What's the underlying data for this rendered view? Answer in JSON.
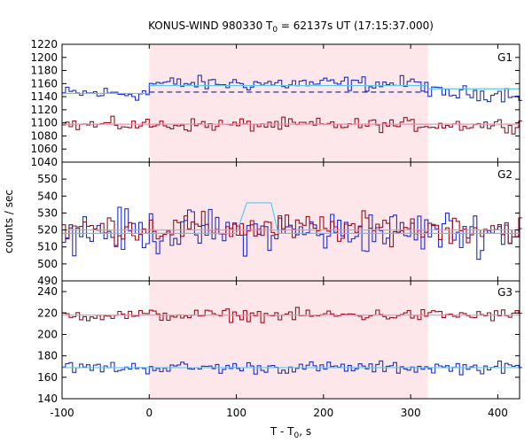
{
  "chart_data": {
    "type": "line",
    "title": {
      "main": "KONUS-WIND 980330 T",
      "sub": "0",
      "rest": " = 62137s UT (17:15:37.000)"
    },
    "xlabel": {
      "main": "T - T",
      "sub": "0",
      "rest": ", s"
    },
    "ylabel": "counts / sec",
    "xlim": [
      -100,
      425
    ],
    "xticks": [
      -100,
      0,
      100,
      200,
      300,
      400
    ],
    "highlight_interval": [
      0,
      320
    ],
    "colors": {
      "blue": "#1f2dcc",
      "red": "#9b0e1e",
      "cyan": "#5bc8ee",
      "pink": "#f08fa6",
      "navy": "#1c1e9a",
      "shade": "#fde7ea"
    },
    "panels": [
      {
        "label": "G1",
        "ylim": [
          1040,
          1220
        ],
        "yticks": [
          1040,
          1060,
          1080,
          1100,
          1120,
          1140,
          1160,
          1180,
          1200,
          1220
        ],
        "blue_base": 1145,
        "blue_burst": 1160,
        "blue_noise": 8,
        "red_base": 1097,
        "red_noise": 7,
        "fits": [
          {
            "color": "cyan",
            "dashed": false,
            "segments": [
              [
                -100,
                1145,
                0,
                1145
              ],
              [
                0,
                1157,
                320,
                1157
              ],
              [
                320,
                1152,
                425,
                1152
              ]
            ]
          },
          {
            "color": "navy",
            "dashed": true,
            "segments": [
              [
                0,
                1147,
                320,
                1147
              ]
            ]
          },
          {
            "color": "pink",
            "dashed": false,
            "segments": [
              [
                -100,
                1098,
                425,
                1098
              ]
            ]
          }
        ]
      },
      {
        "label": "G2",
        "ylim": [
          490,
          560
        ],
        "yticks": [
          490,
          500,
          510,
          520,
          530,
          540,
          550
        ],
        "blue_base": 519,
        "blue_burst": 519,
        "blue_noise": 9,
        "red_base": 521,
        "red_noise": 6,
        "fits": [
          {
            "color": "cyan",
            "dashed": false,
            "segments": [
              [
                -100,
                518,
                100,
                518
              ],
              [
                100,
                518,
                112,
                536
              ],
              [
                112,
                536,
                140,
                536
              ],
              [
                140,
                536,
                148,
                518
              ],
              [
                148,
                518,
                425,
                518
              ]
            ]
          },
          {
            "color": "pink",
            "dashed": false,
            "segments": [
              [
                -100,
                520,
                425,
                520
              ]
            ]
          }
        ]
      },
      {
        "label": "G3",
        "ylim": [
          140,
          250
        ],
        "yticks": [
          140,
          160,
          180,
          200,
          220,
          240
        ],
        "blue_base": 169,
        "blue_burst": 169,
        "blue_noise": 4,
        "red_base": 218,
        "red_noise": 4,
        "fits": [
          {
            "color": "cyan",
            "dashed": false,
            "segments": [
              [
                -100,
                169,
                425,
                169
              ]
            ]
          },
          {
            "color": "pink",
            "dashed": false,
            "segments": [
              [
                -100,
                218,
                425,
                218
              ]
            ]
          }
        ]
      }
    ]
  }
}
